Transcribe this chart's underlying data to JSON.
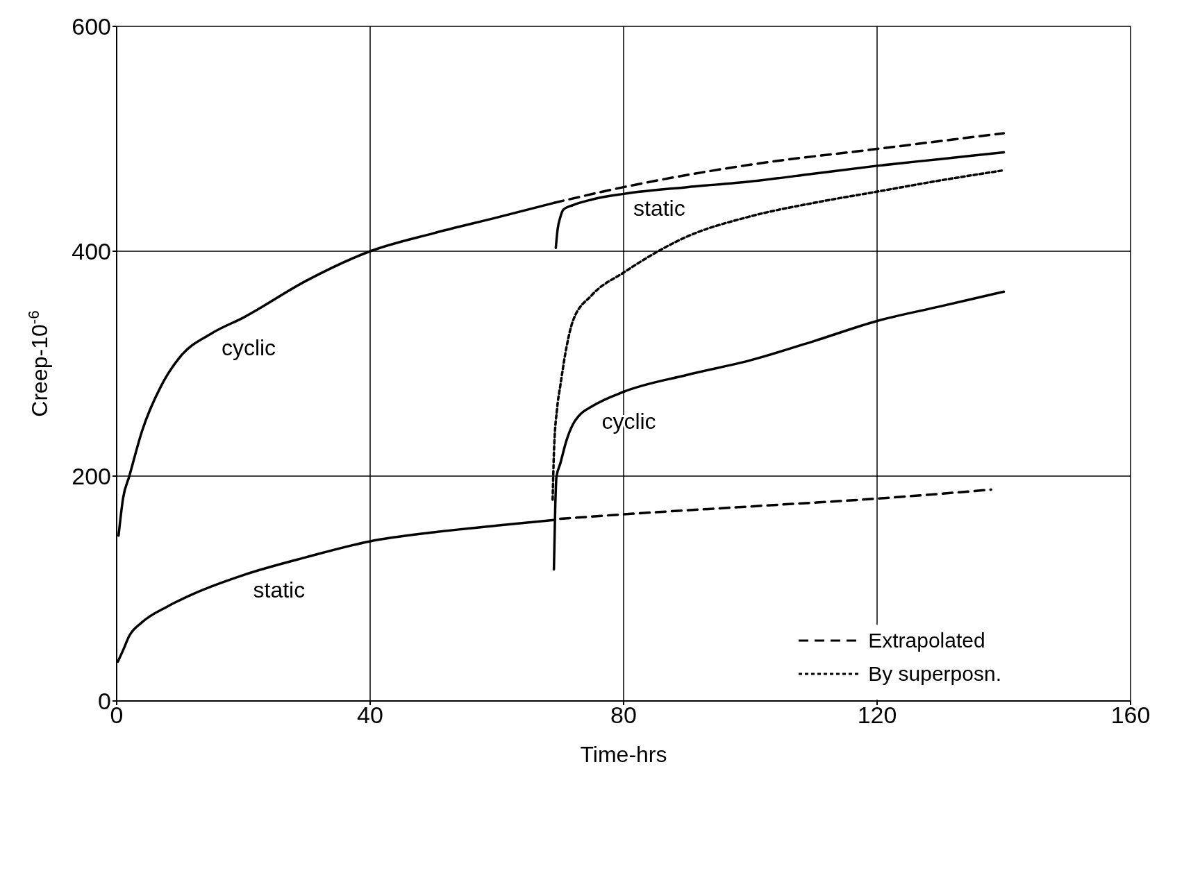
{
  "chart_data": {
    "type": "line",
    "xlabel": "Time-hrs",
    "ylabel": "Creep-10$^{-6}$",
    "xlim": [
      0,
      160
    ],
    "ylim": [
      0,
      600
    ],
    "xticks": [
      0,
      40,
      80,
      120,
      160
    ],
    "yticks": [
      0,
      200,
      400,
      600
    ],
    "grid": true,
    "legend": "bottom right",
    "marker": "none",
    "series": [
      {
        "name": "cyclic",
        "color": "#000000",
        "line_style": "solid",
        "x": [
          0.3,
          1,
          2,
          4,
          7,
          10,
          15,
          20,
          30,
          40,
          50,
          60,
          69
        ],
        "values": [
          147,
          180,
          200,
          240,
          280,
          306,
          327,
          341,
          374,
          400,
          416,
          430,
          443
        ]
      },
      {
        "name": "static",
        "color": "#000000",
        "line_style": "solid",
        "x": [
          69.3,
          69.6,
          70,
          70.5,
          72,
          75,
          80,
          90,
          100,
          110,
          120,
          130,
          140
        ],
        "values": [
          403,
          420,
          430,
          437,
          441,
          446,
          451,
          457,
          462,
          469,
          476,
          482,
          488
        ]
      },
      {
        "name": "static",
        "color": "#000000",
        "line_style": "solid",
        "x": [
          0.2,
          1,
          2,
          4,
          8,
          12,
          20,
          30,
          40,
          50,
          60,
          69
        ],
        "values": [
          35,
          45,
          58,
          70,
          84,
          95,
          112,
          128,
          142,
          150,
          156,
          161
        ]
      },
      {
        "name": "cyclic",
        "color": "#000000",
        "line_style": "solid",
        "x": [
          69,
          69.2,
          69.4,
          70,
          71,
          72,
          73,
          75,
          80,
          90,
          100,
          110,
          120,
          130,
          140
        ],
        "values": [
          117,
          170,
          199,
          211,
          232,
          246,
          254,
          262,
          275,
          290,
          303,
          320,
          338,
          351,
          364
        ]
      },
      {
        "name": "Extrapolated",
        "color": "#000000",
        "line_style": "dashed",
        "x": [
          69,
          80,
          100,
          120,
          140
        ],
        "values": [
          443,
          457,
          477,
          491,
          505
        ]
      },
      {
        "color": "#000000",
        "line_style": "dashed",
        "x": [
          70,
          80,
          100,
          120,
          138
        ],
        "values": [
          162,
          166,
          173,
          180,
          188
        ]
      },
      {
        "name": "By superposn.",
        "color": "#000000",
        "line_style": "dotted",
        "x": [
          68.8,
          69,
          69.5,
          70,
          71,
          72,
          75,
          80,
          90,
          100,
          110,
          120,
          130,
          140
        ],
        "values": [
          179,
          220,
          260,
          280,
          315,
          338,
          361,
          381,
          413,
          431,
          443,
          453,
          463,
          472
        ]
      }
    ]
  }
}
